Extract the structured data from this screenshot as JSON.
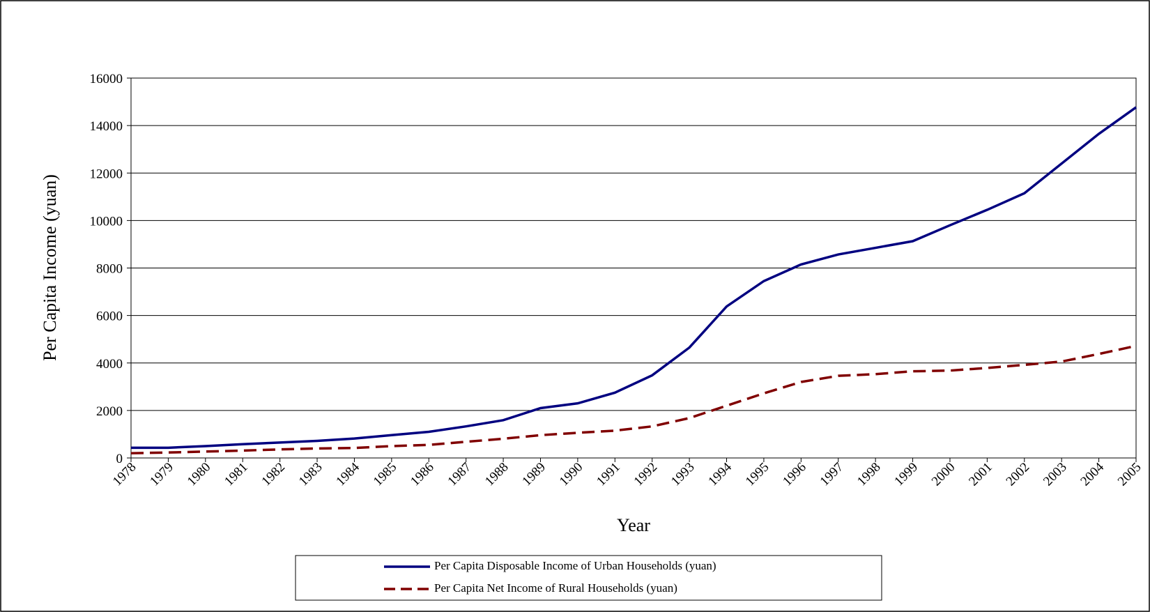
{
  "chart_data": {
    "type": "line",
    "xlabel": "Year",
    "ylabel": "Per Capita Income (yuan)",
    "categories": [
      "1978",
      "1979",
      "1980",
      "1981",
      "1982",
      "1983",
      "1984",
      "1985",
      "1986",
      "1987",
      "1988",
      "1989",
      "1990",
      "1991",
      "1992",
      "1993",
      "1994",
      "1995",
      "1996",
      "1997",
      "1998",
      "1999",
      "2000",
      "2001",
      "2002",
      "2003",
      "2004",
      "2005"
    ],
    "series": [
      {
        "name": "Per Capita Disposable Income of Urban Households (yuan)",
        "color": "#000080",
        "dash": "solid",
        "values": [
          430,
          430,
          500,
          580,
          650,
          720,
          820,
          960,
          1100,
          1330,
          1590,
          2100,
          2300,
          2750,
          3480,
          4650,
          6380,
          7450,
          8150,
          8570,
          8850,
          9130,
          9800,
          10450,
          11150,
          12400,
          13650,
          14770
        ]
      },
      {
        "name": "Per Capita Net Income of Rural Households (yuan)",
        "color": "#800000",
        "dash": "dashed",
        "values": [
          200,
          230,
          270,
          310,
          360,
          400,
          420,
          500,
          550,
          680,
          810,
          960,
          1060,
          1150,
          1330,
          1680,
          2200,
          2720,
          3200,
          3460,
          3530,
          3650,
          3680,
          3790,
          3920,
          4060,
          4380,
          4720
        ]
      }
    ],
    "ylim": [
      0,
      16000
    ],
    "yticks": [
      0,
      2000,
      4000,
      6000,
      8000,
      10000,
      12000,
      14000,
      16000
    ],
    "grid": true,
    "legend": "bottom"
  }
}
